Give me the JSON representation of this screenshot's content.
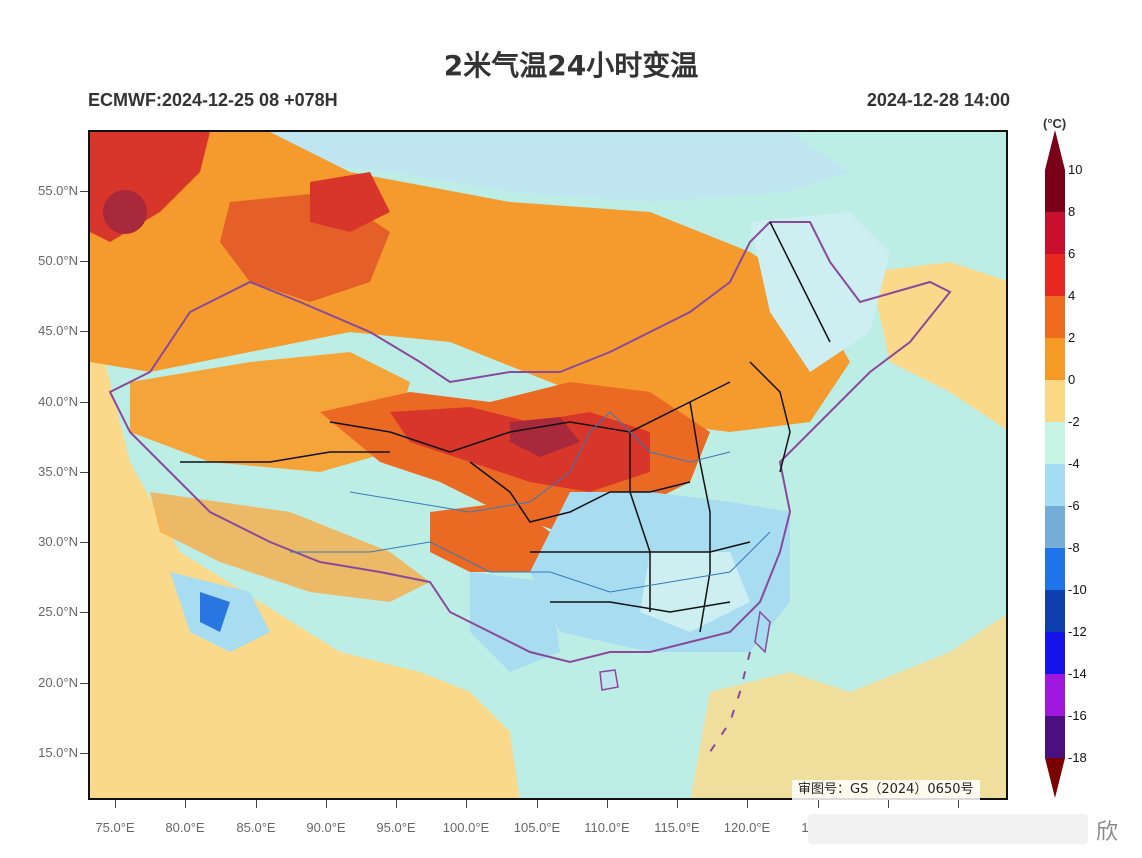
{
  "title": "2米气温24小时变温",
  "model_run": "ECMWF:2024-12-25 08 +078H",
  "valid_time": "2024-12-28 14:00",
  "approval_number": "审图号：GS（2024）0650号",
  "watermark_text": "欣",
  "lat_labels": [
    "55.0°N",
    "50.0°N",
    "45.0°N",
    "40.0°N",
    "35.0°N",
    "30.0°N",
    "25.0°N",
    "20.0°N",
    "15.0°N"
  ],
  "lon_labels": [
    "75.0°E",
    "80.0°E",
    "85.0°E",
    "90.0°E",
    "95.0°E",
    "100.0°E",
    "105.0°E",
    "110.0°E",
    "115.0°E",
    "120.0°E",
    "1"
  ],
  "colorbar": {
    "unit": "(°C)",
    "labels": [
      "10",
      "8",
      "6",
      "4",
      "2",
      "0",
      "-2",
      "-4",
      "-6",
      "-8",
      "-10",
      "-12",
      "-14",
      "-16",
      "-18"
    ],
    "colors": [
      "#7a0018",
      "#c8102e",
      "#e8281e",
      "#f06a1e",
      "#f59a24",
      "#fad884",
      "#c6f4e4",
      "#a4dcf4",
      "#74aed8",
      "#1f74ea",
      "#1040b0",
      "#1414ea",
      "#a018e0",
      "#4a1080",
      "#7a0000"
    ]
  },
  "map_colors": {
    "ocean": "#bdeee6",
    "warm_light": "#fbd98a",
    "warm_orange": "#f59a2c",
    "warm_dark": "#ea6a24",
    "hot_red": "#d8362a",
    "hot_dark": "#a8283c",
    "cool_light": "#a8dcf0",
    "cool_blue": "#74aed8",
    "cold_blue": "#2a76e0"
  }
}
